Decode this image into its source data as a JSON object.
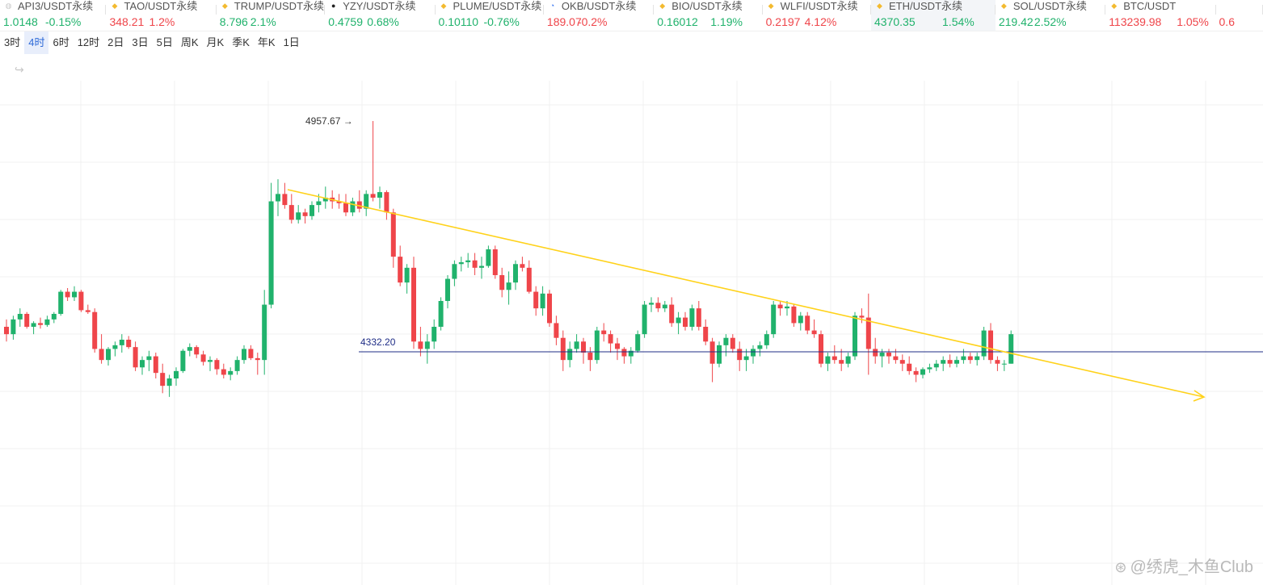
{
  "ticker": [
    {
      "icon": "globe-icon",
      "icon_color": "#c9c9c9",
      "name": "API3/USDT永续",
      "price": "1.0148",
      "change": "-0.15%",
      "trend": "up",
      "active": false
    },
    {
      "icon": "diamond-icon",
      "icon_color": "#f3ba2f",
      "name": "TAO/USDT永续",
      "price": "348.21",
      "change": "1.2%",
      "trend": "down",
      "active": false
    },
    {
      "icon": "diamond-icon",
      "icon_color": "#f3ba2f",
      "name": "TRUMP/USDT永续",
      "price": "8.796",
      "change": "2.1%",
      "trend": "up",
      "active": false
    },
    {
      "icon": "circle-icon",
      "icon_color": "#222222",
      "name": "YZY/USDT永续",
      "price": "0.4759",
      "change": "0.68%",
      "trend": "up",
      "active": false
    },
    {
      "icon": "diamond-icon",
      "icon_color": "#f3ba2f",
      "name": "PLUME/USDT永续",
      "price": "0.10110",
      "change": "-0.76%",
      "trend": "up",
      "active": false
    },
    {
      "icon": "okb-icon",
      "icon_color": "#2a6cf0",
      "name": "OKB/USDT永续",
      "price": "189.07",
      "change": "-0.2%",
      "trend": "down",
      "active": false
    },
    {
      "icon": "diamond-icon",
      "icon_color": "#f3ba2f",
      "name": "BIO/USDT永续",
      "price": "0.16012",
      "change": "1.19%",
      "trend": "up",
      "active": false
    },
    {
      "icon": "diamond-icon",
      "icon_color": "#f3ba2f",
      "name": "WLFI/USDT永续",
      "price": "0.2197",
      "change": "4.12%",
      "trend": "down",
      "active": false
    },
    {
      "icon": "diamond-icon",
      "icon_color": "#f3ba2f",
      "name": "ETH/USDT永续",
      "price": "4370.35",
      "change": "1.54%",
      "trend": "up",
      "active": true
    },
    {
      "icon": "diamond-icon",
      "icon_color": "#f3ba2f",
      "name": "SOL/USDT永续",
      "price": "219.42",
      "change": "2.52%",
      "trend": "up",
      "active": false
    },
    {
      "icon": "diamond-icon",
      "icon_color": "#f3ba2f",
      "name": "BTC/USDT",
      "price": "113239.98",
      "change": "1.05%",
      "trend": "down",
      "active": false
    },
    {
      "icon": "",
      "icon_color": "",
      "name": "",
      "price": "0.6",
      "change": "",
      "trend": "down",
      "active": false
    }
  ],
  "timeframes": [
    "3时",
    "4时",
    "6时",
    "12时",
    "2日",
    "3日",
    "5日",
    "周K",
    "月K",
    "季K",
    "年K",
    "1日"
  ],
  "active_timeframe": "4时",
  "chart": {
    "high_label": "4957.67",
    "high_arrow": "→",
    "support_label": "4332.20",
    "colors": {
      "up": "#20b26c",
      "down": "#ef454a",
      "trendline": "#ffd21a",
      "support": "#1f2d86",
      "grid": "#f0f0f0"
    }
  },
  "chart_data": {
    "type": "candlestick",
    "symbol": "ETH/USDT永续",
    "interval": "4时",
    "candles": [
      [
        4400,
        4420,
        4360,
        4380
      ],
      [
        4380,
        4430,
        4365,
        4420
      ],
      [
        4420,
        4450,
        4400,
        4435
      ],
      [
        4435,
        4440,
        4395,
        4400
      ],
      [
        4400,
        4415,
        4380,
        4410
      ],
      [
        4410,
        4425,
        4395,
        4405
      ],
      [
        4405,
        4430,
        4400,
        4420
      ],
      [
        4420,
        4440,
        4410,
        4435
      ],
      [
        4435,
        4500,
        4430,
        4495
      ],
      [
        4495,
        4505,
        4470,
        4480
      ],
      [
        4480,
        4510,
        4470,
        4495
      ],
      [
        4495,
        4500,
        4440,
        4445
      ],
      [
        4445,
        4460,
        4435,
        4440
      ],
      [
        4440,
        4450,
        4330,
        4340
      ],
      [
        4340,
        4380,
        4300,
        4310
      ],
      [
        4310,
        4345,
        4295,
        4340
      ],
      [
        4340,
        4360,
        4320,
        4350
      ],
      [
        4350,
        4380,
        4330,
        4365
      ],
      [
        4365,
        4375,
        4340,
        4345
      ],
      [
        4345,
        4360,
        4280,
        4290
      ],
      [
        4290,
        4320,
        4270,
        4310
      ],
      [
        4310,
        4335,
        4280,
        4320
      ],
      [
        4320,
        4330,
        4260,
        4275
      ],
      [
        4275,
        4300,
        4220,
        4240
      ],
      [
        4240,
        4270,
        4210,
        4260
      ],
      [
        4260,
        4290,
        4240,
        4280
      ],
      [
        4280,
        4340,
        4275,
        4335
      ],
      [
        4335,
        4355,
        4320,
        4345
      ],
      [
        4345,
        4350,
        4315,
        4325
      ],
      [
        4325,
        4335,
        4295,
        4305
      ],
      [
        4305,
        4320,
        4280,
        4310
      ],
      [
        4310,
        4315,
        4270,
        4285
      ],
      [
        4285,
        4300,
        4260,
        4270
      ],
      [
        4270,
        4290,
        4255,
        4280
      ],
      [
        4280,
        4320,
        4270,
        4310
      ],
      [
        4310,
        4350,
        4300,
        4340
      ],
      [
        4340,
        4350,
        4310,
        4315
      ],
      [
        4315,
        4330,
        4270,
        4310
      ],
      [
        4310,
        4500,
        4270,
        4460
      ],
      [
        4460,
        4790,
        4450,
        4740
      ],
      [
        4740,
        4800,
        4700,
        4760
      ],
      [
        4760,
        4790,
        4720,
        4730
      ],
      [
        4730,
        4760,
        4680,
        4690
      ],
      [
        4690,
        4730,
        4680,
        4710
      ],
      [
        4710,
        4720,
        4680,
        4700
      ],
      [
        4700,
        4740,
        4690,
        4730
      ],
      [
        4730,
        4760,
        4710,
        4740
      ],
      [
        4740,
        4780,
        4720,
        4750
      ],
      [
        4750,
        4770,
        4720,
        4740
      ],
      [
        4740,
        4760,
        4720,
        4735
      ],
      [
        4735,
        4760,
        4700,
        4710
      ],
      [
        4710,
        4750,
        4700,
        4740
      ],
      [
        4740,
        4770,
        4710,
        4720
      ],
      [
        4720,
        4770,
        4700,
        4760
      ],
      [
        4760,
        4957.67,
        4740,
        4750
      ],
      [
        4750,
        4780,
        4720,
        4765
      ],
      [
        4765,
        4770,
        4690,
        4710
      ],
      [
        4710,
        4720,
        4560,
        4590
      ],
      [
        4590,
        4620,
        4510,
        4520
      ],
      [
        4520,
        4570,
        4490,
        4560
      ],
      [
        4560,
        4590,
        4340,
        4360
      ],
      [
        4360,
        4400,
        4320,
        4340
      ],
      [
        4340,
        4380,
        4300,
        4360
      ],
      [
        4360,
        4420,
        4340,
        4400
      ],
      [
        4400,
        4480,
        4390,
        4470
      ],
      [
        4470,
        4540,
        4450,
        4530
      ],
      [
        4530,
        4580,
        4510,
        4570
      ],
      [
        4570,
        4590,
        4550,
        4575
      ],
      [
        4575,
        4600,
        4560,
        4580
      ],
      [
        4580,
        4600,
        4540,
        4560
      ],
      [
        4560,
        4590,
        4530,
        4565
      ],
      [
        4565,
        4620,
        4560,
        4610
      ],
      [
        4610,
        4620,
        4530,
        4540
      ],
      [
        4540,
        4560,
        4480,
        4500
      ],
      [
        4500,
        4550,
        4460,
        4520
      ],
      [
        4520,
        4580,
        4500,
        4570
      ],
      [
        4570,
        4590,
        4550,
        4560
      ],
      [
        4560,
        4580,
        4490,
        4495
      ],
      [
        4495,
        4510,
        4430,
        4450
      ],
      [
        4450,
        4510,
        4430,
        4490
      ],
      [
        4490,
        4500,
        4400,
        4410
      ],
      [
        4410,
        4430,
        4350,
        4370
      ],
      [
        4370,
        4390,
        4280,
        4310
      ],
      [
        4310,
        4360,
        4290,
        4340
      ],
      [
        4340,
        4380,
        4330,
        4360
      ],
      [
        4360,
        4370,
        4300,
        4330
      ],
      [
        4330,
        4345,
        4280,
        4310
      ],
      [
        4310,
        4400,
        4300,
        4390
      ],
      [
        4390,
        4410,
        4360,
        4380
      ],
      [
        4380,
        4390,
        4330,
        4355
      ],
      [
        4355,
        4370,
        4310,
        4340
      ],
      [
        4340,
        4345,
        4300,
        4320
      ],
      [
        4320,
        4345,
        4300,
        4335
      ],
      [
        4335,
        4390,
        4330,
        4380
      ],
      [
        4380,
        4470,
        4370,
        4460
      ],
      [
        4460,
        4480,
        4440,
        4465
      ],
      [
        4465,
        4480,
        4440,
        4450
      ],
      [
        4450,
        4470,
        4440,
        4460
      ],
      [
        4460,
        4480,
        4400,
        4410
      ],
      [
        4410,
        4440,
        4380,
        4425
      ],
      [
        4425,
        4440,
        4390,
        4400
      ],
      [
        4400,
        4460,
        4390,
        4450
      ],
      [
        4450,
        4470,
        4390,
        4400
      ],
      [
        4400,
        4420,
        4350,
        4360
      ],
      [
        4360,
        4370,
        4250,
        4300
      ],
      [
        4300,
        4360,
        4290,
        4350
      ],
      [
        4350,
        4380,
        4320,
        4370
      ],
      [
        4370,
        4380,
        4330,
        4340
      ],
      [
        4340,
        4360,
        4280,
        4310
      ],
      [
        4310,
        4340,
        4280,
        4320
      ],
      [
        4320,
        4350,
        4300,
        4340
      ],
      [
        4340,
        4360,
        4320,
        4350
      ],
      [
        4350,
        4390,
        4340,
        4380
      ],
      [
        4380,
        4470,
        4370,
        4460
      ],
      [
        4460,
        4470,
        4430,
        4450
      ],
      [
        4450,
        4470,
        4430,
        4455
      ],
      [
        4455,
        4460,
        4400,
        4410
      ],
      [
        4410,
        4440,
        4390,
        4430
      ],
      [
        4430,
        4440,
        4380,
        4390
      ],
      [
        4390,
        4420,
        4370,
        4380
      ],
      [
        4380,
        4390,
        4290,
        4300
      ],
      [
        4300,
        4330,
        4280,
        4320
      ],
      [
        4320,
        4350,
        4300,
        4310
      ],
      [
        4310,
        4340,
        4280,
        4300
      ],
      [
        4300,
        4330,
        4290,
        4320
      ],
      [
        4320,
        4440,
        4310,
        4430
      ],
      [
        4430,
        4450,
        4410,
        4425
      ],
      [
        4425,
        4490,
        4270,
        4340
      ],
      [
        4340,
        4370,
        4300,
        4320
      ],
      [
        4320,
        4340,
        4290,
        4330
      ],
      [
        4330,
        4340,
        4300,
        4320
      ],
      [
        4320,
        4340,
        4300,
        4310
      ],
      [
        4310,
        4325,
        4280,
        4300
      ],
      [
        4300,
        4320,
        4270,
        4280
      ],
      [
        4280,
        4290,
        4250,
        4270
      ],
      [
        4270,
        4290,
        4260,
        4285
      ],
      [
        4285,
        4300,
        4275,
        4290
      ],
      [
        4290,
        4310,
        4280,
        4300
      ],
      [
        4300,
        4320,
        4280,
        4310
      ],
      [
        4310,
        4325,
        4290,
        4300
      ],
      [
        4300,
        4320,
        4290,
        4310
      ],
      [
        4310,
        4340,
        4300,
        4320
      ],
      [
        4320,
        4330,
        4300,
        4310
      ],
      [
        4310,
        4330,
        4295,
        4320
      ],
      [
        4320,
        4400,
        4310,
        4390
      ],
      [
        4390,
        4410,
        4300,
        4310
      ],
      [
        4310,
        4320,
        4280,
        4300
      ],
      [
        4300,
        4310,
        4280,
        4300
      ],
      [
        4300,
        4390,
        4300,
        4380
      ]
    ],
    "high": 4957.67,
    "support_level": 4332.2,
    "trendline": {
      "from_candle": 44,
      "from_price": 4740,
      "to_candle": 164,
      "to_price": 4150
    }
  },
  "watermark": {
    "icon": "at-icon",
    "text": "@绣虎_木鱼Club"
  }
}
